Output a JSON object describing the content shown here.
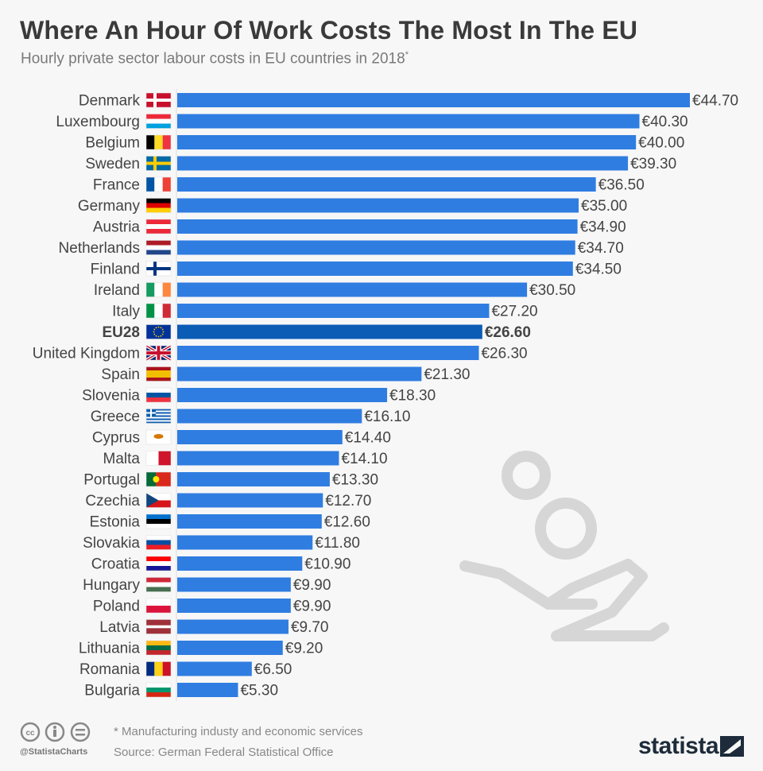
{
  "title": "Where An Hour Of Work Costs The Most In The EU",
  "subtitle": "Hourly private sector labour costs in EU countries in 2018",
  "subtitle_mark": "*",
  "footer": {
    "note": "* Manufacturing industy and economic services",
    "source": "Source: German Federal Statistical Office",
    "handle": "@StatistaCharts",
    "logo": "statista"
  },
  "colors": {
    "bar": "#2f7de1",
    "highlight": "#0b5cb5",
    "background": "#f7f7f7"
  },
  "chart_data": {
    "type": "bar",
    "orientation": "horizontal",
    "unit": "€",
    "highlight": "EU28",
    "categories": [
      "Denmark",
      "Luxembourg",
      "Belgium",
      "Sweden",
      "France",
      "Germany",
      "Austria",
      "Netherlands",
      "Finland",
      "Ireland",
      "Italy",
      "EU28",
      "United Kingdom",
      "Spain",
      "Slovenia",
      "Greece",
      "Cyprus",
      "Malta",
      "Portugal",
      "Czechia",
      "Estonia",
      "Slovakia",
      "Croatia",
      "Hungary",
      "Poland",
      "Latvia",
      "Lithuania",
      "Romania",
      "Bulgaria"
    ],
    "values": [
      44.7,
      40.3,
      40.0,
      39.3,
      36.5,
      35.0,
      34.9,
      34.7,
      34.5,
      30.5,
      27.2,
      26.6,
      26.3,
      21.3,
      18.3,
      16.1,
      14.4,
      14.1,
      13.3,
      12.7,
      12.6,
      11.8,
      10.9,
      9.9,
      9.9,
      9.7,
      9.2,
      6.5,
      5.3
    ],
    "labels": [
      "€44.70",
      "€40.30",
      "€40.00",
      "€39.30",
      "€36.50",
      "€35.00",
      "€34.90",
      "€34.70",
      "€34.50",
      "€30.50",
      "€27.20",
      "€26.60",
      "€26.30",
      "€21.30",
      "€18.30",
      "€16.10",
      "€14.40",
      "€14.10",
      "€13.30",
      "€12.70",
      "€12.60",
      "€11.80",
      "€10.90",
      "€9.90",
      "€9.90",
      "€9.70",
      "€9.20",
      "€6.50",
      "€5.30"
    ],
    "flags": [
      {
        "t": "nordic",
        "c": [
          "#c8102e",
          "#ffffff"
        ]
      },
      {
        "t": "h",
        "c": [
          "#ed2939",
          "#ffffff",
          "#00a1de"
        ]
      },
      {
        "t": "v",
        "c": [
          "#000000",
          "#fdda24",
          "#ef3340"
        ]
      },
      {
        "t": "nordic",
        "c": [
          "#006aa7",
          "#fecc00"
        ]
      },
      {
        "t": "v",
        "c": [
          "#0055a4",
          "#ffffff",
          "#ef4135"
        ]
      },
      {
        "t": "h",
        "c": [
          "#000000",
          "#dd0000",
          "#ffce00"
        ]
      },
      {
        "t": "h",
        "c": [
          "#ed2939",
          "#ffffff",
          "#ed2939"
        ]
      },
      {
        "t": "h",
        "c": [
          "#ae1c28",
          "#ffffff",
          "#21468b"
        ]
      },
      {
        "t": "nordic",
        "c": [
          "#ffffff",
          "#003580"
        ]
      },
      {
        "t": "v",
        "c": [
          "#169b62",
          "#ffffff",
          "#ff883e"
        ]
      },
      {
        "t": "v",
        "c": [
          "#009246",
          "#ffffff",
          "#ce2b37"
        ]
      },
      {
        "t": "eu",
        "c": [
          "#003399",
          "#ffcc00"
        ]
      },
      {
        "t": "uk",
        "c": [
          "#012169",
          "#ffffff",
          "#c8102e"
        ]
      },
      {
        "t": "h3",
        "c": [
          "#aa151b",
          "#f1bf00",
          "#aa151b"
        ]
      },
      {
        "t": "h",
        "c": [
          "#ffffff",
          "#0055a4",
          "#ef3340"
        ]
      },
      {
        "t": "gr",
        "c": [
          "#0d5eaf",
          "#ffffff"
        ]
      },
      {
        "t": "plain",
        "c": [
          "#ffffff",
          "#d57800"
        ]
      },
      {
        "t": "v2",
        "c": [
          "#ffffff",
          "#cf142b"
        ]
      },
      {
        "t": "v2p",
        "c": [
          "#046a38",
          "#da291c"
        ]
      },
      {
        "t": "cz",
        "c": [
          "#ffffff",
          "#d7141a",
          "#11457e"
        ]
      },
      {
        "t": "h",
        "c": [
          "#0072ce",
          "#000000",
          "#ffffff"
        ]
      },
      {
        "t": "h",
        "c": [
          "#ffffff",
          "#0b4ea2",
          "#ee1c25"
        ]
      },
      {
        "t": "h",
        "c": [
          "#ff0000",
          "#ffffff",
          "#171796"
        ]
      },
      {
        "t": "h",
        "c": [
          "#ce2939",
          "#ffffff",
          "#477050"
        ]
      },
      {
        "t": "h2",
        "c": [
          "#ffffff",
          "#dc143c"
        ]
      },
      {
        "t": "lv",
        "c": [
          "#9e3039",
          "#ffffff"
        ]
      },
      {
        "t": "h",
        "c": [
          "#fdb913",
          "#006a44",
          "#c1272d"
        ]
      },
      {
        "t": "v",
        "c": [
          "#002b7f",
          "#fcd116",
          "#ce1126"
        ]
      },
      {
        "t": "h",
        "c": [
          "#ffffff",
          "#00966e",
          "#d62612"
        ]
      }
    ]
  }
}
